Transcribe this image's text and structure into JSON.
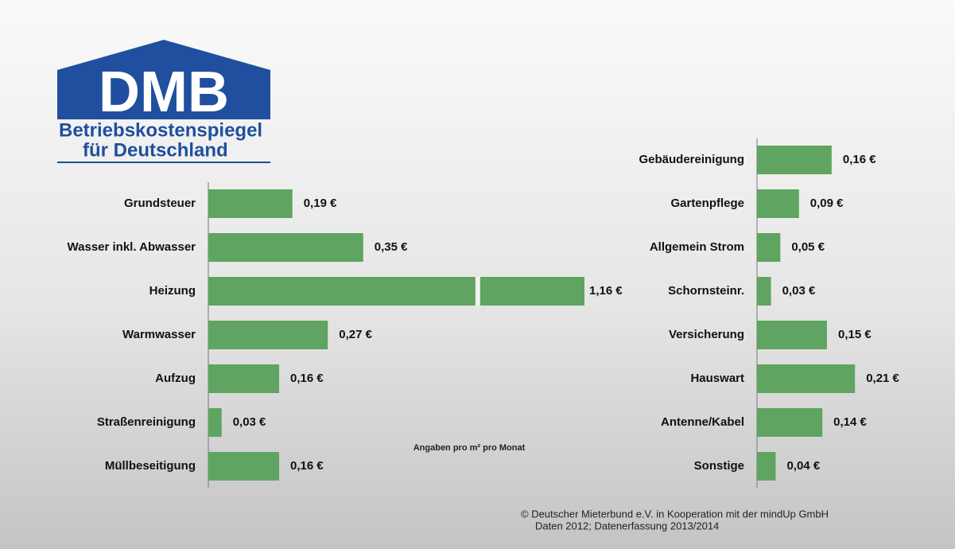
{
  "logo": {
    "title": "DMB",
    "line1": "Betriebskostenspiegel",
    "line2": "für Deutschland"
  },
  "note": "Angaben pro m² pro Monat",
  "footer": {
    "line1": "© Deutscher Mieterbund e.V. in Kooperation mit der mindUp GmbH",
    "line2": "Daten 2012; Datenerfassung 2013/2014"
  },
  "chart_data": [
    {
      "type": "bar",
      "orientation": "horizontal",
      "color": "#5fa460",
      "xlim": [
        0,
        0.85
      ],
      "axis_break": true,
      "categories": [
        "Grundsteuer",
        "Wasser inkl. Abwasser",
        "Heizung",
        "Warmwasser",
        "Aufzug",
        "Straßenreinigung",
        "Müllbeseitigung"
      ],
      "values": [
        0.19,
        0.35,
        1.16,
        0.27,
        0.16,
        0.03,
        0.16
      ],
      "value_labels": [
        "0,19 €",
        "0,35 €",
        "1,16 €",
        "0,27 €",
        "0,16 €",
        "0,03 €",
        "0,16 €"
      ]
    },
    {
      "type": "bar",
      "orientation": "horizontal",
      "color": "#5fa460",
      "xlim": [
        0,
        0.3
      ],
      "categories": [
        "Gebäudereinigung",
        "Gartenpflege",
        "Allgemein Strom",
        "Schornsteinr.",
        "Versicherung",
        "Hauswart",
        "Antenne/Kabel",
        "Sonstige"
      ],
      "values": [
        0.16,
        0.09,
        0.05,
        0.03,
        0.15,
        0.21,
        0.14,
        0.04
      ],
      "value_labels": [
        "0,16 €",
        "0,09 €",
        "0,05 €",
        "0,03 €",
        "0,15 €",
        "0,21 €",
        "0,14 €",
        "0,04 €"
      ]
    }
  ]
}
